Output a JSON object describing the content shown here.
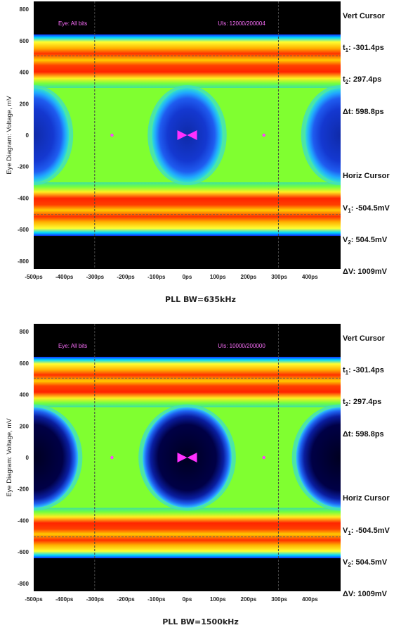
{
  "chart_data": [
    {
      "type": "heatmap",
      "subtype": "eye-diagram",
      "overlay_left": "Eye: All bits",
      "overlay_right": "UIs: 12000/200004",
      "ylabel": "Eye Diagram: Voltage, mV",
      "xlabel": "",
      "ylim": [
        -850,
        850
      ],
      "xlim": [
        -500,
        500
      ],
      "y_ticks": [
        "800",
        "600",
        "400",
        "200",
        "0",
        "-200",
        "-400",
        "-600",
        "-800"
      ],
      "y_tick_values": [
        800,
        600,
        400,
        200,
        0,
        -200,
        -400,
        -600,
        -800
      ],
      "x_ticks": [
        "-500ps",
        "-400ps",
        "-300ps",
        "-200ps",
        "-100ps",
        "0ps",
        "100ps",
        "200ps",
        "300ps",
        "400ps"
      ],
      "x_tick_values": [
        -500,
        -400,
        -300,
        -200,
        -100,
        0,
        100,
        200,
        300,
        400
      ],
      "vert_cursor_ps": [
        -301.4,
        297.4
      ],
      "horiz_cursor_mV": [
        -504.5,
        504.5
      ],
      "eye_center_ps": [
        -500,
        0,
        500
      ],
      "eye_half_height_mV": 300,
      "marker_points": [
        {
          "x": -245,
          "y": 0
        },
        {
          "x": 250,
          "y": 0
        }
      ],
      "grid": false,
      "cursor_panel": {
        "vert_title": "Vert Cursor",
        "t1_label": "t",
        "t1_sub": "1",
        "t1_value": ": -301.4ps",
        "t2_label": "t",
        "t2_sub": "2",
        "t2_value": ": 297.4ps",
        "dt": "Δt: 598.8ps",
        "horiz_title": "Horiz Cursor",
        "v1_label": "V",
        "v1_sub": "1",
        "v1_value": ": -504.5mV",
        "v2_label": "V",
        "v2_sub": "2",
        "v2_value": ": 504.5mV",
        "dv": "ΔV: 1009mV"
      },
      "caption": "PLL BW=635kHz"
    },
    {
      "type": "heatmap",
      "subtype": "eye-diagram",
      "overlay_left": "Eye: All bits",
      "overlay_right": "UIs: 10000/200000",
      "ylabel": "Eye Diagram: Voltage, mV",
      "xlabel": "",
      "ylim": [
        -850,
        850
      ],
      "xlim": [
        -500,
        500
      ],
      "y_ticks": [
        "800",
        "600",
        "400",
        "200",
        "0",
        "-200",
        "-400",
        "-600",
        "-800"
      ],
      "y_tick_values": [
        800,
        600,
        400,
        200,
        0,
        -200,
        -400,
        -600,
        -800
      ],
      "x_ticks": [
        "-500ps",
        "-400ps",
        "-300ps",
        "-200ps",
        "-100ps",
        "0ps",
        "100ps",
        "200ps",
        "300ps",
        "400ps"
      ],
      "x_tick_values": [
        -500,
        -400,
        -300,
        -200,
        -100,
        0,
        100,
        200,
        300,
        400
      ],
      "vert_cursor_ps": [
        -301.4,
        297.4
      ],
      "horiz_cursor_mV": [
        -504.5,
        504.5
      ],
      "eye_center_ps": [
        -500,
        0,
        500
      ],
      "eye_half_height_mV": 320,
      "marker_points": [
        {
          "x": -245,
          "y": 0
        },
        {
          "x": 250,
          "y": 0
        }
      ],
      "grid": false,
      "cursor_panel": {
        "vert_title": "Vert Cursor",
        "t1_label": "t",
        "t1_sub": "1",
        "t1_value": ": -301.4ps",
        "t2_label": "t",
        "t2_sub": "2",
        "t2_value": ": 297.4ps",
        "dt": "Δt: 598.8ps",
        "horiz_title": "Horiz Cursor",
        "v1_label": "V",
        "v1_sub": "1",
        "v1_value": ": -504.5mV",
        "v2_label": "V",
        "v2_sub": "2",
        "v2_value": ": 504.5mV",
        "dv": "ΔV: 1009mV"
      },
      "caption": "PLL BW=1500kHz"
    }
  ]
}
